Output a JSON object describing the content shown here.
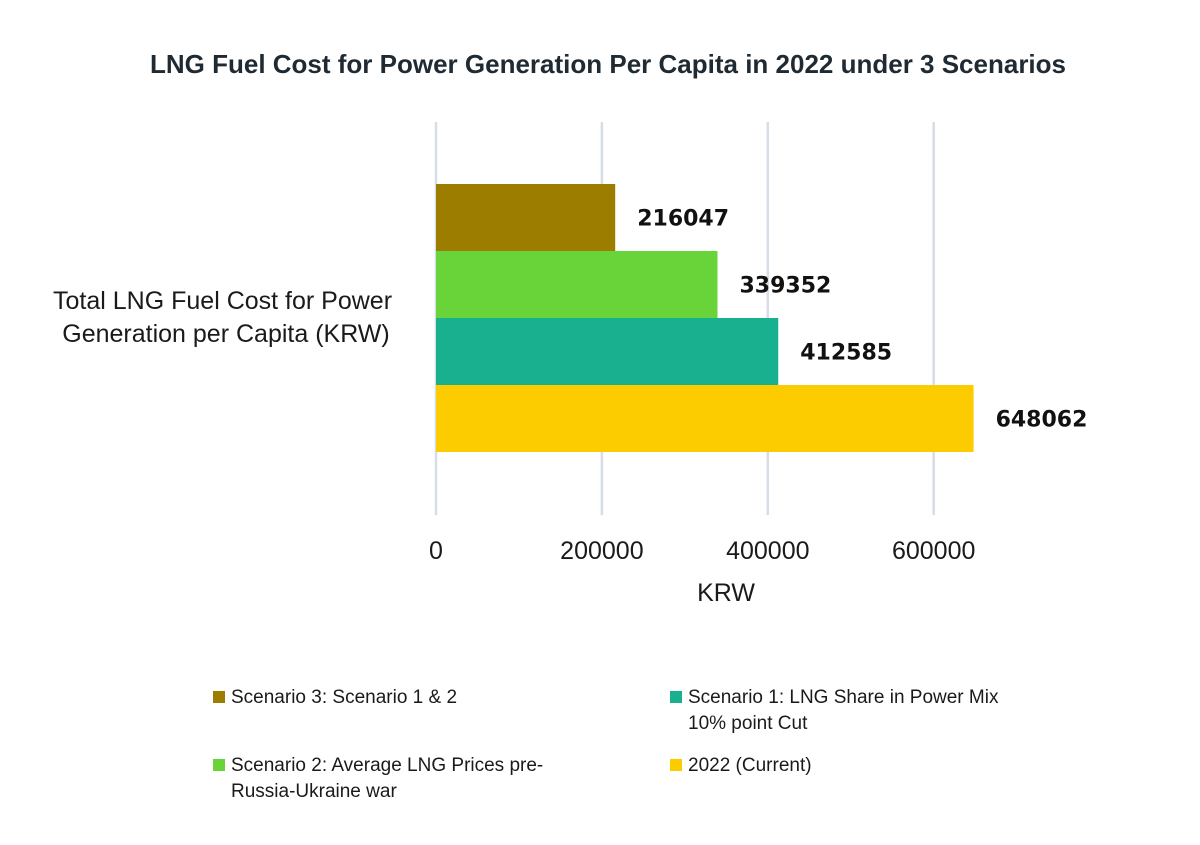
{
  "chart_data": {
    "type": "bar",
    "orientation": "horizontal",
    "title": "LNG Fuel Cost for Power Generation Per Capita in 2022 under 3 Scenarios",
    "categories": [
      "Total LNG Fuel Cost for Power Generation per Capita (KRW)"
    ],
    "category_label_lines": [
      "Total LNG Fuel Cost for Power",
      "Generation per Capita (KRW)"
    ],
    "series": [
      {
        "name": "Scenario 3: Scenario 1 & 2",
        "legend_lines": [
          "Scenario 3: Scenario 1 & 2"
        ],
        "values": [
          216047
        ],
        "color": "#9c7d00"
      },
      {
        "name": "Scenario 2: Average LNG Prices pre-Russia-Ukraine war",
        "legend_lines": [
          "Scenario 2: Average LNG Prices pre-",
          "Russia-Ukraine war"
        ],
        "values": [
          339352
        ],
        "color": "#69d33a"
      },
      {
        "name": "Scenario 1: LNG Share in Power Mix 10% point Cut",
        "legend_lines": [
          "Scenario 1: LNG Share in Power Mix",
          "10% point Cut"
        ],
        "values": [
          412585
        ],
        "color": "#19b090"
      },
      {
        "name": "2022 (Current)",
        "legend_lines": [
          "2022 (Current)"
        ],
        "values": [
          648062
        ],
        "color": "#fccb00"
      }
    ],
    "data_labels": [
      "216047",
      "339352",
      "412585",
      "648062"
    ],
    "xlabel": "KRW",
    "ylabel": "",
    "xlim": [
      0,
      650000
    ],
    "xticks": [
      0,
      200000,
      400000,
      600000
    ],
    "xtick_labels": [
      "0",
      "200000",
      "400000",
      "600000"
    ],
    "grid": true,
    "legend_position": "bottom",
    "grid_color": "#d5dde6"
  }
}
